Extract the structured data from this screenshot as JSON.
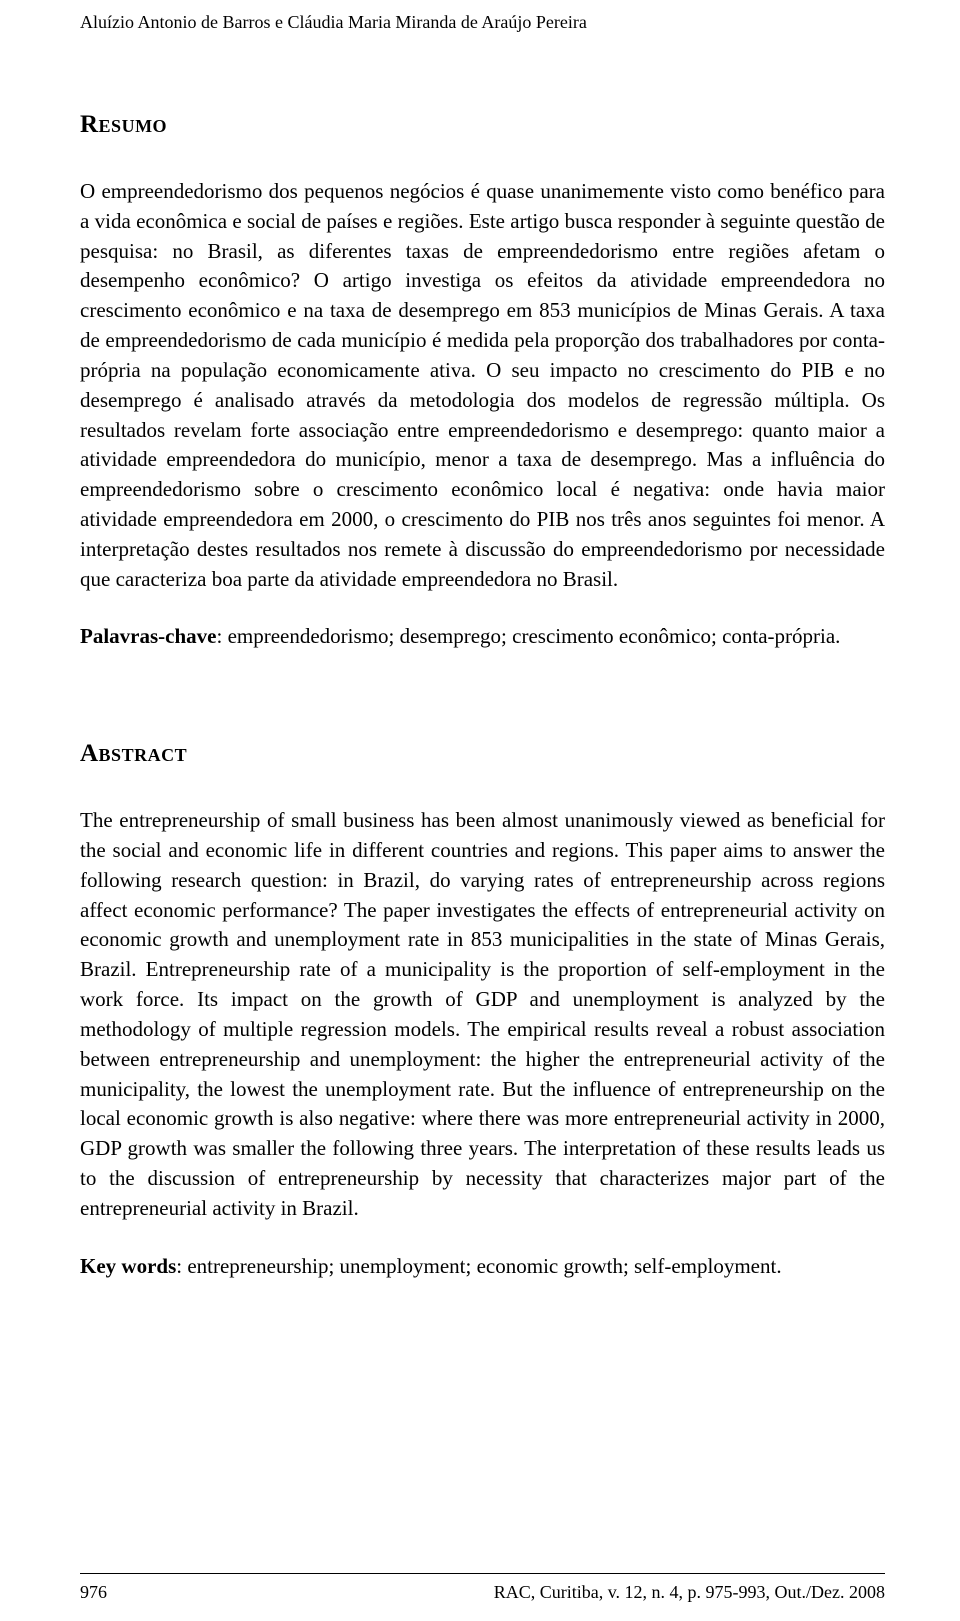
{
  "header": {
    "authors": "Aluízio Antonio de Barros e Cláudia Maria Miranda de Araújo Pereira"
  },
  "resumo": {
    "heading": "Resumo",
    "body": "O empreendedorismo dos pequenos negócios é quase unanimemente visto como benéfico para a vida econômica e social de países e regiões. Este artigo busca responder à seguinte questão de pesquisa: no Brasil, as diferentes taxas de empreendedorismo entre regiões afetam o desempenho econômico? O artigo investiga os efeitos da atividade empreendedora no crescimento econômico e na taxa de desemprego em 853 municípios de Minas Gerais. A taxa de empreendedorismo de cada município é medida pela proporção dos trabalhadores por conta-própria na população economicamente ativa. O seu impacto no crescimento do PIB e no desemprego é analisado através da metodologia dos modelos de regressão múltipla. Os resultados revelam forte associação entre empreendedorismo e desemprego: quanto maior a atividade empreendedora do município, menor a taxa de desemprego. Mas a influência do empreendedorismo sobre o crescimento econômico local é negativa: onde havia maior atividade empreendedora em 2000, o crescimento do PIB nos três anos seguintes foi menor. A interpretação destes resultados nos remete à discussão do empreendedorismo por necessidade que caracteriza boa parte da atividade empreendedora no Brasil.",
    "keywords_label": "Palavras-chave",
    "keywords_text": ": empreendedorismo; desemprego; crescimento econômico; conta-própria."
  },
  "abstract": {
    "heading": "Abstract",
    "body": "The entrepreneurship of small business has been almost unanimously viewed as beneficial for the social and economic life in different countries and regions. This paper aims to answer the following research question: in Brazil, do varying rates of entrepreneurship across regions affect economic performance? The paper investigates the effects of entrepreneurial activity on economic growth and unemployment rate in 853 municipalities in the state of Minas Gerais, Brazil. Entrepreneurship rate of a municipality is the proportion of self-employment in the work force. Its impact on the growth of GDP and unemployment is analyzed by the methodology of multiple regression models. The empirical results reveal a robust association between entrepreneurship and unemployment: the higher the entrepreneurial activity of the municipality, the lowest the unemployment rate. But the influence of entrepreneurship on the local economic growth is also negative: where there was more entrepreneurial activity in 2000, GDP growth was smaller the following three years. The interpretation of these results leads us to the discussion of entrepreneurship by necessity that characterizes major part of the entrepreneurial activity in Brazil.",
    "keywords_label": "Key words",
    "keywords_text": ": entrepreneurship; unemployment; economic growth; self-employment."
  },
  "footer": {
    "page_number": "976",
    "citation": "RAC, Curitiba, v. 12, n. 4, p. 975-993, Out./Dez. 2008"
  }
}
